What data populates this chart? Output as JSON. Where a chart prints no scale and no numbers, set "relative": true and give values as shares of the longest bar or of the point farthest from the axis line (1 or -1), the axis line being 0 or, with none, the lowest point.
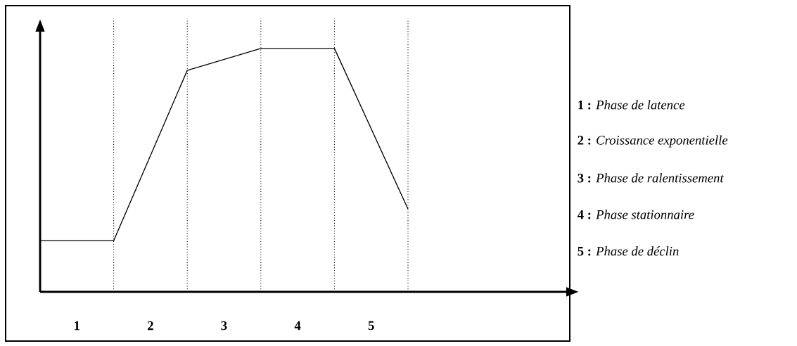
{
  "chart_data": {
    "type": "line",
    "relative": true,
    "categories": [
      null,
      null,
      null,
      null,
      null,
      null
    ],
    "tick_labels": false,
    "marker": "none",
    "line_style": "solid",
    "series": [
      {
        "color": "#000000",
        "values": [
          0.21,
          0.21,
          0.91,
          1,
          1,
          0.34
        ]
      }
    ],
    "grid": "x",
    "annotations": [
      "1",
      "2",
      "3",
      "4",
      "5",
      "**1 :** *Phase de latence*",
      "**2 :** *Croissance exponentielle*",
      "**3 :** *Phase de ralentissement*",
      "**4 :** *Phase stationnaire*",
      "**5 :** *Phase de déclin*"
    ]
  }
}
